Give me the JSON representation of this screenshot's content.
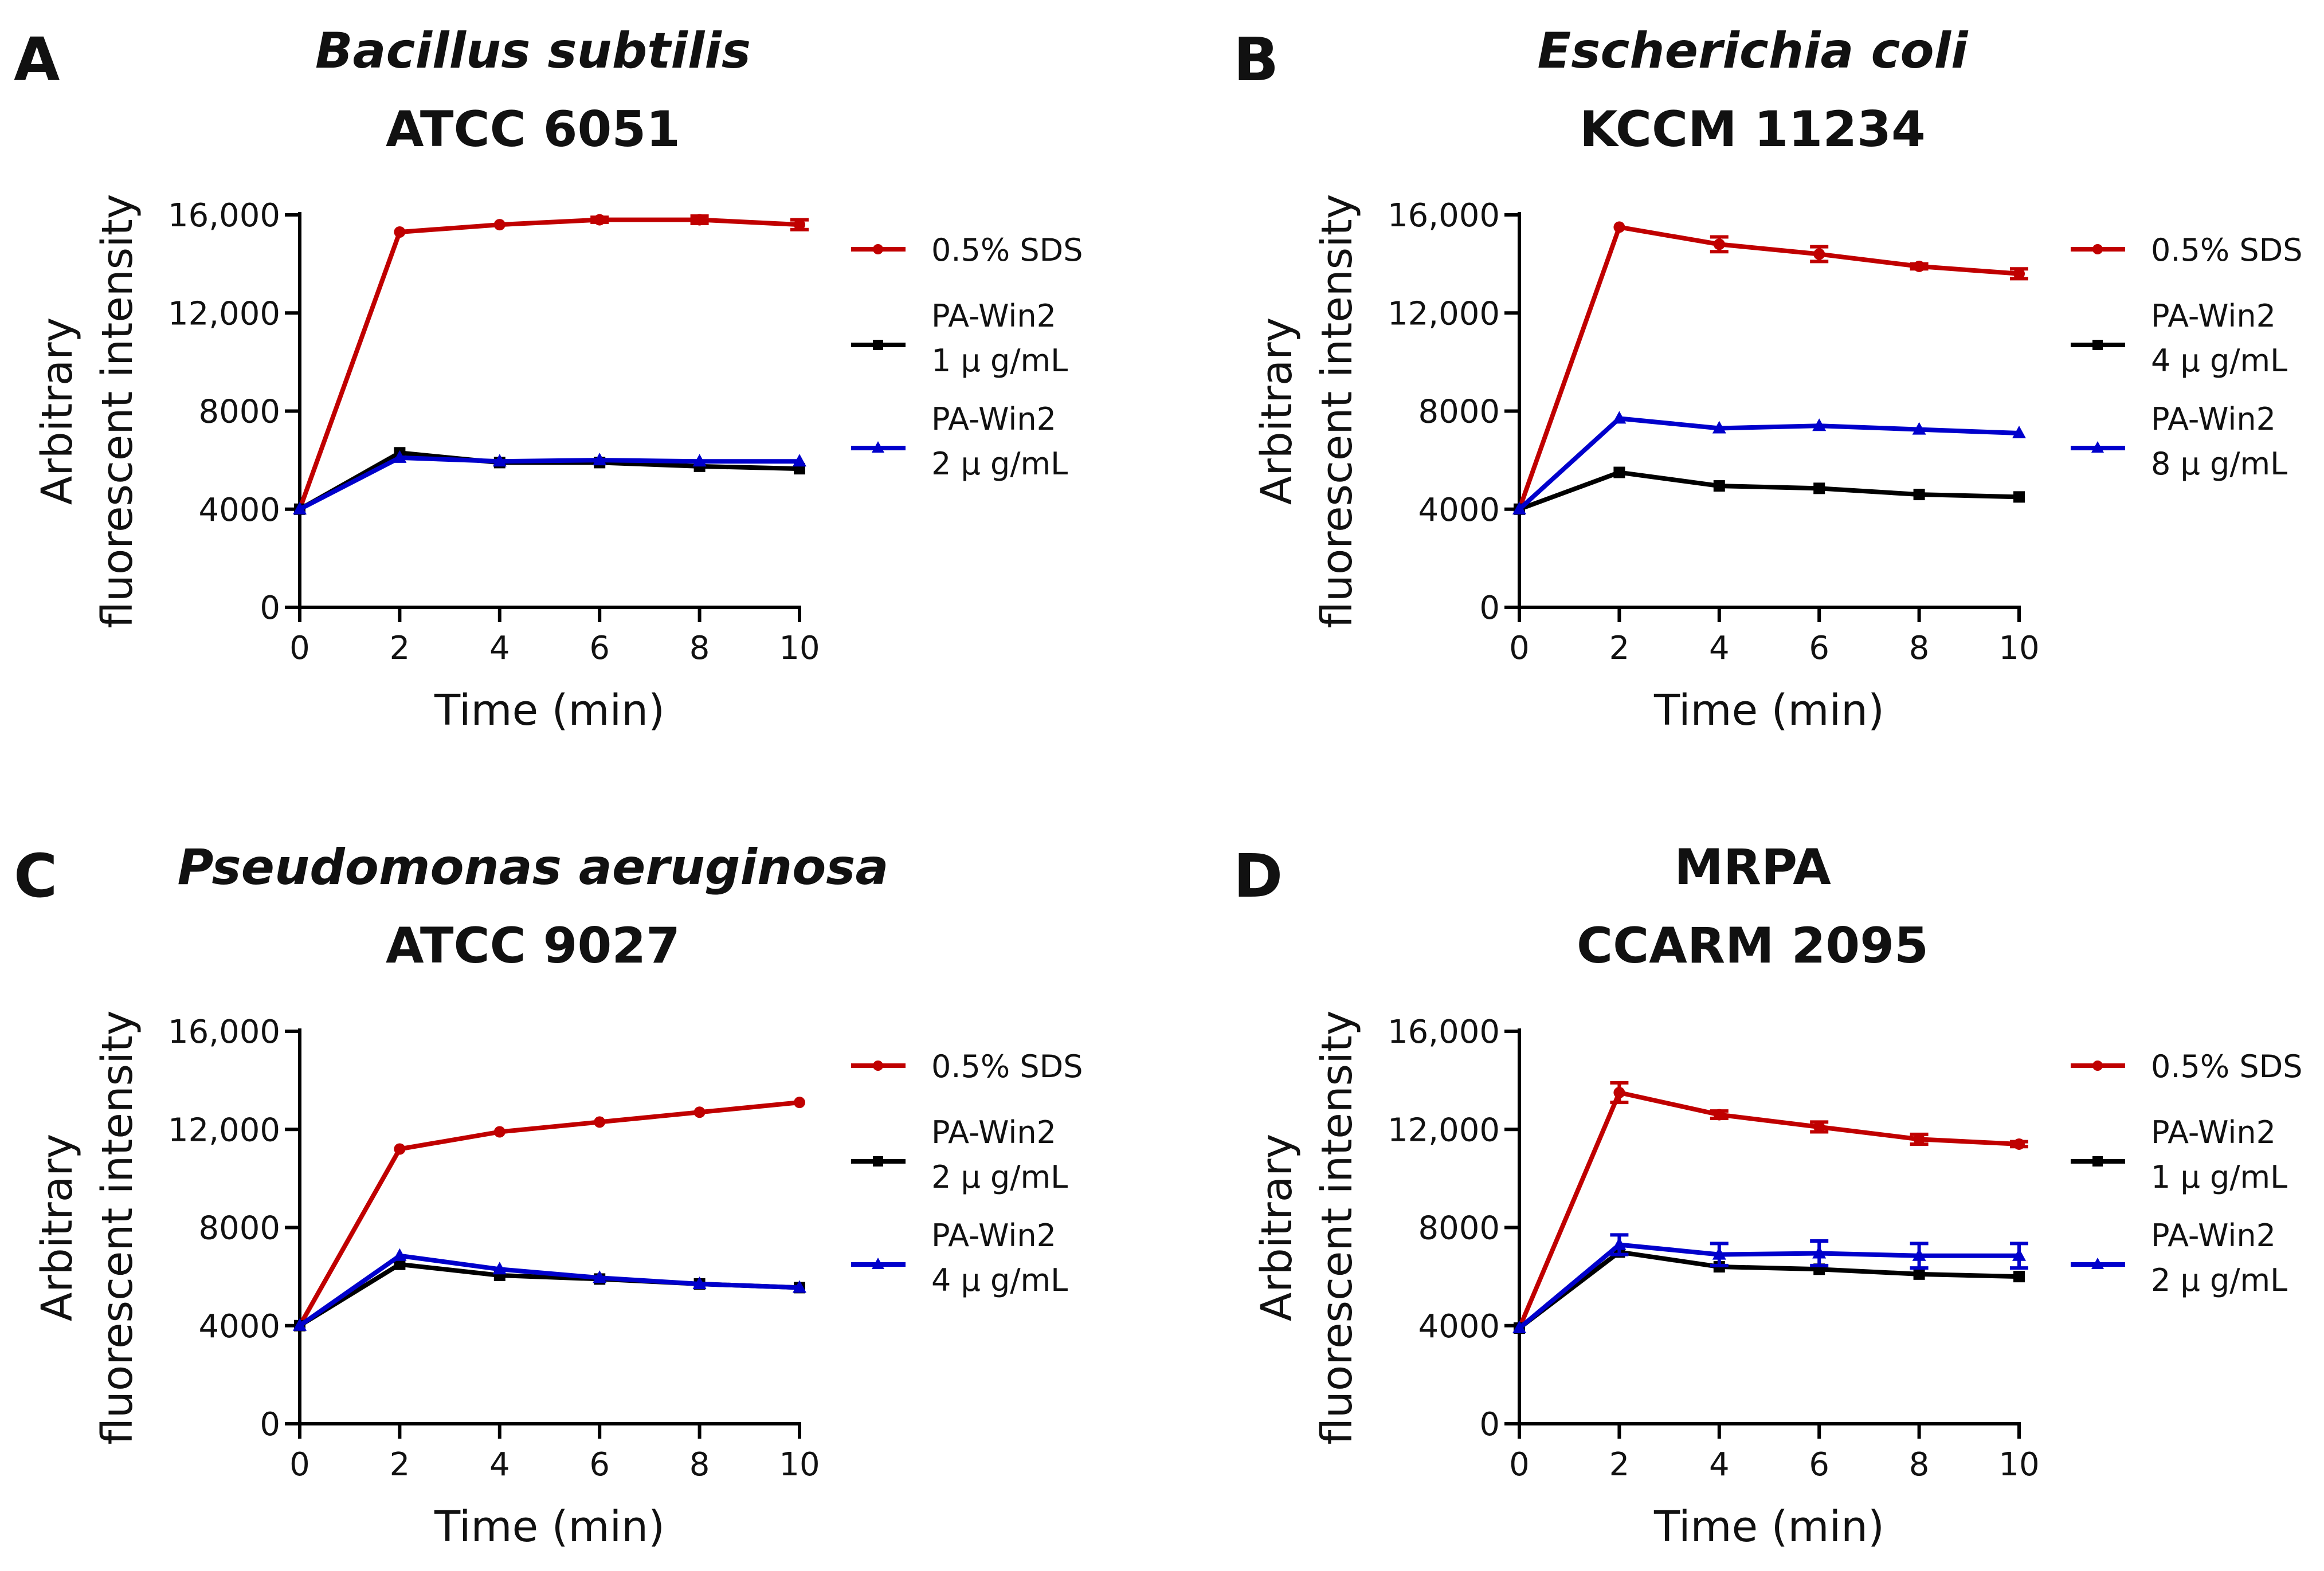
{
  "chart_data": [
    {
      "panel_label": "A",
      "type": "line",
      "title_line1": "Bacillus subtilis",
      "title_line1_italic": true,
      "title_line2": "ATCC 6051",
      "xlabel": "Time (min)",
      "ylabel_line1": "Arbitrary",
      "ylabel_line2": "fluorescent intensity",
      "x": [
        0,
        2,
        4,
        6,
        8,
        10
      ],
      "xticks": [
        "0",
        "2",
        "4",
        "6",
        "8",
        "10"
      ],
      "yticks": [
        "0",
        "4000",
        "8000",
        "12,000",
        "16,000"
      ],
      "ytick_values": [
        0,
        4000,
        8000,
        12000,
        16000
      ],
      "xlim": [
        0,
        10
      ],
      "ylim": [
        0,
        16000
      ],
      "series": [
        {
          "name_line1": "0.5% SDS",
          "name_line2": "",
          "color": "#c00000",
          "marker": "circle",
          "values": [
            4000,
            15300,
            15600,
            15800,
            15800,
            15600
          ],
          "errors": [
            0,
            0,
            0,
            100,
            150,
            200
          ]
        },
        {
          "name_line1": "PA-Win2",
          "name_line2": "1 μ g/mL",
          "color": "#000000",
          "marker": "square",
          "values": [
            4000,
            6300,
            5900,
            5900,
            5750,
            5650
          ],
          "errors": [
            0,
            0,
            0,
            0,
            0,
            0
          ]
        },
        {
          "name_line1": "PA-Win2",
          "name_line2": "2 μ g/mL",
          "color": "#0000cc",
          "marker": "triangle",
          "values": [
            4000,
            6100,
            5950,
            6000,
            5950,
            5950
          ],
          "errors": [
            0,
            0,
            0,
            0,
            0,
            0
          ]
        }
      ]
    },
    {
      "panel_label": "B",
      "type": "line",
      "title_line1": "Escherichia coli",
      "title_line1_italic": true,
      "title_line2": "KCCM 11234",
      "xlabel": "Time (min)",
      "ylabel_line1": "Arbitrary",
      "ylabel_line2": "fluorescent intensity",
      "x": [
        0,
        2,
        4,
        6,
        8,
        10
      ],
      "xticks": [
        "0",
        "2",
        "4",
        "6",
        "8",
        "10"
      ],
      "yticks": [
        "0",
        "4000",
        "8000",
        "12,000",
        "16,000"
      ],
      "ytick_values": [
        0,
        4000,
        8000,
        12000,
        16000
      ],
      "xlim": [
        0,
        10
      ],
      "ylim": [
        0,
        16000
      ],
      "series": [
        {
          "name_line1": "0.5% SDS",
          "name_line2": "",
          "color": "#c00000",
          "marker": "circle",
          "values": [
            4000,
            15500,
            14800,
            14400,
            13900,
            13600
          ],
          "errors": [
            0,
            0,
            300,
            300,
            100,
            200
          ]
        },
        {
          "name_line1": "PA-Win2",
          "name_line2": "4 μ g/mL",
          "color": "#000000",
          "marker": "square",
          "values": [
            4000,
            5500,
            4950,
            4850,
            4600,
            4500
          ],
          "errors": [
            0,
            0,
            0,
            0,
            0,
            0
          ]
        },
        {
          "name_line1": "PA-Win2",
          "name_line2": "8 μ g/mL",
          "color": "#0000cc",
          "marker": "triangle",
          "values": [
            4000,
            7700,
            7300,
            7400,
            7250,
            7100
          ],
          "errors": [
            0,
            0,
            0,
            0,
            0,
            0
          ]
        }
      ]
    },
    {
      "panel_label": "C",
      "type": "line",
      "title_line1": "Pseudomonas aeruginosa",
      "title_line1_italic": true,
      "title_line2": "ATCC 9027",
      "xlabel": "Time (min)",
      "ylabel_line1": "Arbitrary",
      "ylabel_line2": "fluorescent intensity",
      "x": [
        0,
        2,
        4,
        6,
        8,
        10
      ],
      "xticks": [
        "0",
        "2",
        "4",
        "6",
        "8",
        "10"
      ],
      "yticks": [
        "0",
        "4000",
        "8000",
        "12,000",
        "16,000"
      ],
      "ytick_values": [
        0,
        4000,
        8000,
        12000,
        16000
      ],
      "xlim": [
        0,
        10
      ],
      "ylim": [
        0,
        16000
      ],
      "series": [
        {
          "name_line1": "0.5% SDS",
          "name_line2": "",
          "color": "#c00000",
          "marker": "circle",
          "values": [
            4000,
            11200,
            11900,
            12300,
            12700,
            13100
          ],
          "errors": [
            0,
            0,
            0,
            0,
            0,
            0
          ]
        },
        {
          "name_line1": "PA-Win2",
          "name_line2": "2 μ g/mL",
          "color": "#000000",
          "marker": "square",
          "values": [
            4000,
            6500,
            6050,
            5900,
            5700,
            5550
          ],
          "errors": [
            0,
            0,
            0,
            0,
            0,
            0
          ]
        },
        {
          "name_line1": "PA-Win2",
          "name_line2": "4 μ g/mL",
          "color": "#0000cc",
          "marker": "triangle",
          "values": [
            4000,
            6850,
            6300,
            5950,
            5700,
            5550
          ],
          "errors": [
            0,
            0,
            0,
            0,
            0,
            0
          ]
        }
      ]
    },
    {
      "panel_label": "D",
      "type": "line",
      "title_line1": "MRPA",
      "title_line1_italic": false,
      "title_line2": "CCARM 2095",
      "xlabel": "Time (min)",
      "ylabel_line1": "Arbitrary",
      "ylabel_line2": "fluorescent intensity",
      "x": [
        0,
        2,
        4,
        6,
        8,
        10
      ],
      "xticks": [
        "0",
        "2",
        "4",
        "6",
        "8",
        "10"
      ],
      "yticks": [
        "0",
        "4000",
        "8000",
        "12,000",
        "16,000"
      ],
      "ytick_values": [
        0,
        4000,
        8000,
        12000,
        16000
      ],
      "xlim": [
        0,
        10
      ],
      "ylim": [
        0,
        16000
      ],
      "series": [
        {
          "name_line1": "0.5% SDS",
          "name_line2": "",
          "color": "#c00000",
          "marker": "circle",
          "values": [
            3900,
            13500,
            12600,
            12100,
            11600,
            11400
          ],
          "errors": [
            0,
            400,
            150,
            200,
            200,
            100
          ]
        },
        {
          "name_line1": "PA-Win2",
          "name_line2": "1 μ g/mL",
          "color": "#000000",
          "marker": "square",
          "values": [
            3900,
            7000,
            6400,
            6300,
            6100,
            6000
          ],
          "errors": [
            0,
            0,
            0,
            0,
            0,
            0
          ]
        },
        {
          "name_line1": "PA-Win2",
          "name_line2": "2 μ g/mL",
          "color": "#0000cc",
          "marker": "triangle",
          "values": [
            3900,
            7300,
            6900,
            6950,
            6850,
            6850
          ],
          "errors": [
            0,
            400,
            450,
            500,
            500,
            500
          ]
        }
      ]
    }
  ]
}
